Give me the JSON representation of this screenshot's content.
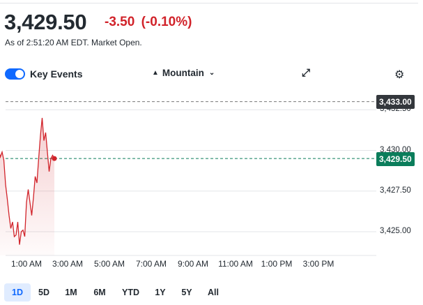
{
  "quote": {
    "price": "3,429.50",
    "change": "-3.50",
    "change_pct": "(-0.10%)",
    "as_of": "As of 2:51:20 AM EDT. Market Open."
  },
  "controls": {
    "key_events_label": "Key Events",
    "key_events_on": true,
    "chart_type": "Mountain"
  },
  "chart": {
    "y_labels": [
      "3,432.50",
      "3,430.00",
      "3,427.50",
      "3,425.00"
    ],
    "x_labels": [
      "1:00 AM",
      "3:00 AM",
      "5:00 AM",
      "7:00 AM",
      "9:00 AM",
      "11:00 AM",
      "1:00 PM",
      "3:00 PM"
    ],
    "previous_close": "3,433.00",
    "current_price": "3,429.50"
  },
  "chart_data": {
    "type": "area",
    "x": [
      "00:00",
      "00:05",
      "00:10",
      "00:15",
      "00:20",
      "00:25",
      "00:30",
      "00:35",
      "00:40",
      "00:45",
      "00:50",
      "00:55",
      "01:00",
      "01:05",
      "01:10",
      "01:15",
      "01:20",
      "01:25",
      "01:30",
      "01:35",
      "01:40",
      "01:45",
      "01:50",
      "01:55",
      "02:00",
      "02:05",
      "02:10",
      "02:15",
      "02:20",
      "02:25",
      "02:30",
      "02:35",
      "02:40",
      "02:45",
      "02:50"
    ],
    "values": [
      3431.1,
      3430.4,
      3430.0,
      3429.6,
      3429.9,
      3429.4,
      3427.9,
      3427.0,
      3426.0,
      3425.2,
      3425.6,
      3424.7,
      3424.8,
      3425.6,
      3424.2,
      3425.0,
      3425.1,
      3424.7,
      3426.8,
      3427.6,
      3426.8,
      3426.0,
      3427.1,
      3428.4,
      3428.0,
      3429.5,
      3430.9,
      3432.0,
      3430.6,
      3431.1,
      3429.9,
      3428.7,
      3429.5,
      3429.7,
      3429.5
    ],
    "ylim": [
      3424.0,
      3434.0
    ],
    "reference_lines": [
      {
        "label": "3,433.00",
        "value": 3433.0,
        "color": "#777777"
      },
      {
        "label": "3,429.50",
        "value": 3429.5,
        "color": "#0b7d5b"
      }
    ],
    "line_color": "#d1232a",
    "grid": true
  },
  "ranges": {
    "items": [
      "1D",
      "5D",
      "1M",
      "6M",
      "YTD",
      "1Y",
      "5Y",
      "All"
    ],
    "active": "1D"
  }
}
